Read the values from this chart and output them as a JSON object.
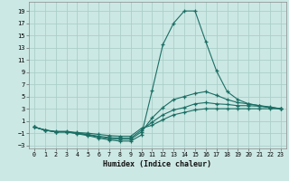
{
  "xlabel": "Humidex (Indice chaleur)",
  "ylabel": "",
  "bg_color": "#cce8e4",
  "grid_color": "#aacfca",
  "line_color": "#1a6e64",
  "xlim": [
    -0.5,
    23.5
  ],
  "ylim": [
    -3.5,
    20.5
  ],
  "yticks": [
    -3,
    -1,
    1,
    3,
    5,
    7,
    9,
    11,
    13,
    15,
    17,
    19
  ],
  "xticks": [
    0,
    1,
    2,
    3,
    4,
    5,
    6,
    7,
    8,
    9,
    10,
    11,
    12,
    13,
    14,
    15,
    16,
    17,
    18,
    19,
    20,
    21,
    22,
    23
  ],
  "series": [
    {
      "x": [
        0,
        1,
        2,
        3,
        4,
        5,
        6,
        7,
        8,
        9,
        10,
        11,
        12,
        13,
        14,
        15,
        16,
        17,
        18,
        19,
        20,
        21,
        22,
        23
      ],
      "y": [
        0,
        -0.5,
        -0.8,
        -0.8,
        -1.1,
        -1.4,
        -1.8,
        -2.1,
        -2.3,
        -2.3,
        -1.3,
        6.0,
        13.5,
        17.0,
        19.0,
        19.0,
        14.0,
        9.2,
        5.8,
        4.5,
        3.8,
        3.5,
        3.2,
        3.0
      ]
    },
    {
      "x": [
        0,
        1,
        2,
        3,
        4,
        5,
        6,
        7,
        8,
        9,
        10,
        11,
        12,
        13,
        14,
        15,
        16,
        17,
        18,
        19,
        20,
        21,
        22,
        23
      ],
      "y": [
        0,
        -0.5,
        -0.8,
        -0.8,
        -1.0,
        -1.3,
        -1.6,
        -1.9,
        -2.0,
        -2.0,
        -0.8,
        1.5,
        3.2,
        4.5,
        5.0,
        5.5,
        5.8,
        5.2,
        4.5,
        4.0,
        3.8,
        3.5,
        3.3,
        3.0
      ]
    },
    {
      "x": [
        0,
        1,
        2,
        3,
        4,
        5,
        6,
        7,
        8,
        9,
        10,
        11,
        12,
        13,
        14,
        15,
        16,
        17,
        18,
        19,
        20,
        21,
        22,
        23
      ],
      "y": [
        0,
        -0.5,
        -0.8,
        -0.8,
        -1.0,
        -1.2,
        -1.5,
        -1.7,
        -1.8,
        -1.8,
        -0.5,
        0.8,
        2.0,
        2.8,
        3.2,
        3.8,
        4.0,
        3.8,
        3.7,
        3.5,
        3.5,
        3.4,
        3.2,
        3.0
      ]
    },
    {
      "x": [
        0,
        1,
        2,
        3,
        4,
        5,
        6,
        7,
        8,
        9,
        10,
        11,
        12,
        13,
        14,
        15,
        16,
        17,
        18,
        19,
        20,
        21,
        22,
        23
      ],
      "y": [
        0,
        -0.5,
        -0.7,
        -0.7,
        -0.9,
        -1.0,
        -1.2,
        -1.4,
        -1.5,
        -1.5,
        -0.2,
        0.3,
        1.2,
        2.0,
        2.4,
        2.8,
        3.0,
        3.0,
        3.0,
        3.0,
        3.0,
        3.0,
        3.0,
        3.0
      ]
    }
  ]
}
